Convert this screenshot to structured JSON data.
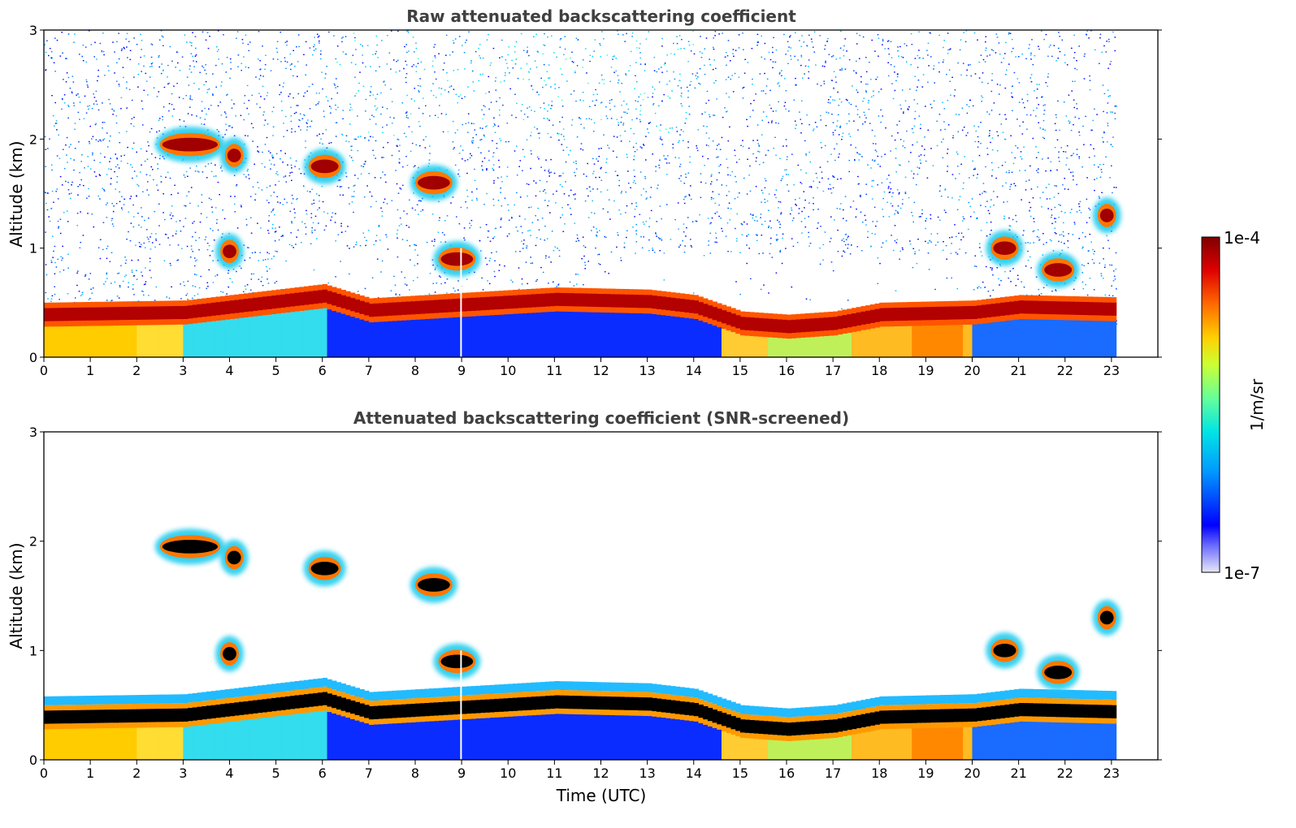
{
  "chart_data": [
    {
      "type": "heatmap",
      "title": "Raw attenuated backscattering coefficient",
      "xlabel": "",
      "ylabel": "Altitude (km)",
      "xlim": [
        0,
        24
      ],
      "ylim": [
        0,
        3
      ],
      "x_ticks": [
        "0",
        "1",
        "2",
        "3",
        "4",
        "5",
        "6",
        "7",
        "8",
        "9",
        "10",
        "11",
        "12",
        "13",
        "14",
        "15",
        "16",
        "17",
        "18",
        "19",
        "20",
        "21",
        "22",
        "23"
      ],
      "y_ticks": [
        "0",
        "1",
        "2",
        "3"
      ],
      "data_end_time": 23.1,
      "screened": false,
      "features": {
        "boundary_layer_top_km": [
          [
            0,
            0.38
          ],
          [
            3,
            0.4
          ],
          [
            5,
            0.5
          ],
          [
            6,
            0.55
          ],
          [
            7,
            0.42
          ],
          [
            9,
            0.47
          ],
          [
            11,
            0.52
          ],
          [
            13,
            0.5
          ],
          [
            14,
            0.45
          ],
          [
            15,
            0.3
          ],
          [
            16,
            0.27
          ],
          [
            17,
            0.3
          ],
          [
            18,
            0.38
          ],
          [
            20,
            0.4
          ],
          [
            21,
            0.45
          ],
          [
            23,
            0.43
          ]
        ],
        "clouds": [
          {
            "t": [
              2.5,
              3.8
            ],
            "alt_km": 1.95
          },
          {
            "t": [
              3.9,
              4.3
            ],
            "alt_km": 1.85
          },
          {
            "t": [
              5.7,
              6.4
            ],
            "alt_km": 1.75
          },
          {
            "t": [
              8.0,
              8.8
            ],
            "alt_km": 1.6
          },
          {
            "t": [
              3.8,
              4.2
            ],
            "alt_km": 0.97
          },
          {
            "t": [
              8.5,
              9.3
            ],
            "alt_km": 0.9
          },
          {
            "t": [
              20.4,
              21.0
            ],
            "alt_km": 1.0
          },
          {
            "t": [
              21.5,
              22.2
            ],
            "alt_km": 0.8
          },
          {
            "t": [
              22.7,
              23.1
            ],
            "alt_km": 1.3
          }
        ]
      }
    },
    {
      "type": "heatmap",
      "title": "Attenuated backscattering coefficient (SNR-screened)",
      "xlabel": "Time (UTC)",
      "ylabel": "Altitude (km)",
      "xlim": [
        0,
        24
      ],
      "ylim": [
        0,
        3
      ],
      "x_ticks": [
        "0",
        "1",
        "2",
        "3",
        "4",
        "5",
        "6",
        "7",
        "8",
        "9",
        "10",
        "11",
        "12",
        "13",
        "14",
        "15",
        "16",
        "17",
        "18",
        "19",
        "20",
        "21",
        "22",
        "23"
      ],
      "y_ticks": [
        "0",
        "1",
        "2",
        "3"
      ],
      "data_end_time": 23.1,
      "screened": true
    }
  ],
  "colorbar": {
    "label": "1/m/sr",
    "max_label": "1e-4",
    "min_label": "1e-7",
    "colormap": [
      "#e8e8f8",
      "#0000ff",
      "#00aaff",
      "#33ffcc",
      "#ccff33",
      "#ffcc00",
      "#ff3300",
      "#800000"
    ],
    "saturation_color": "#000000"
  }
}
